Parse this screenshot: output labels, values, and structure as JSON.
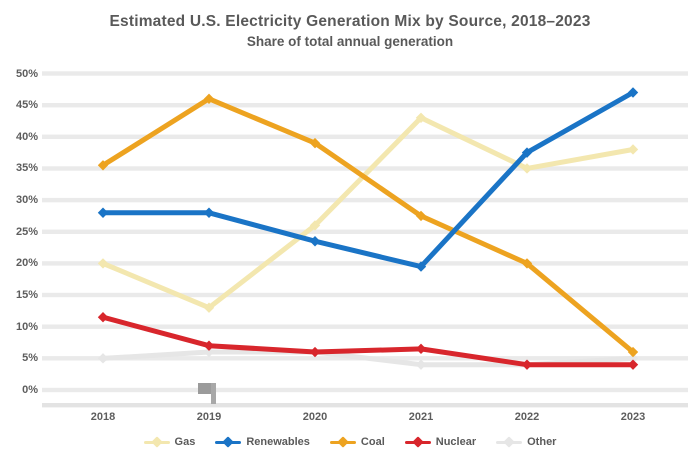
{
  "title": {
    "line1": "Estimated U.S. Electricity Generation Mix by Source, 2018–2023",
    "line2": "Share of total annual generation"
  },
  "y_axis": {
    "tick_labels": [
      "50%",
      "45%",
      "40%",
      "35%",
      "30%",
      "25%",
      "20%",
      "15%",
      "10%",
      "5%",
      "0%"
    ]
  },
  "x_axis": {
    "tick_labels": [
      "2018",
      "2019",
      "2020",
      "2021",
      "2022",
      "2023"
    ]
  },
  "legend": [
    {
      "label": "Gas",
      "color": "#f3e7af"
    },
    {
      "label": "Renewables",
      "color": "#1a74c6"
    },
    {
      "label": "Coal",
      "color": "#eda320"
    },
    {
      "label": "Nuclear",
      "color": "#d8262c"
    },
    {
      "label": "Other",
      "color": "#e6e6e6"
    }
  ],
  "colors": {
    "grid": "#eaeaea",
    "axis_line": "#e3e3e3",
    "text": "#595959",
    "background": "#ffffff"
  },
  "chart_data": {
    "type": "line",
    "x": [
      "2018",
      "2019",
      "2020",
      "2021",
      "2022",
      "2023"
    ],
    "series": [
      {
        "name": "Gas",
        "color": "#f3e7af",
        "values": [
          20,
          13,
          26,
          43,
          35,
          38
        ]
      },
      {
        "name": "Renewables",
        "color": "#1a74c6",
        "values": [
          28,
          28,
          23.5,
          19.5,
          37.5,
          47
        ]
      },
      {
        "name": "Coal",
        "color": "#eda320",
        "values": [
          35.5,
          46,
          39,
          27.5,
          20,
          6
        ]
      },
      {
        "name": "Nuclear",
        "color": "#d8262c",
        "values": [
          11.5,
          7,
          6,
          6.5,
          4,
          4
        ]
      },
      {
        "name": "Other",
        "color": "#e6e6e6",
        "values": [
          5,
          6,
          6,
          4,
          4,
          5
        ]
      }
    ],
    "title": "Estimated U.S. Electricity Generation Mix by Source, 2018–2023",
    "subtitle": "Share of total annual generation",
    "xlabel": "",
    "ylabel": "",
    "ylim": [
      0,
      50
    ],
    "ytick_step": 5,
    "grid": true,
    "marker": "diamond",
    "legend_position": "bottom"
  }
}
